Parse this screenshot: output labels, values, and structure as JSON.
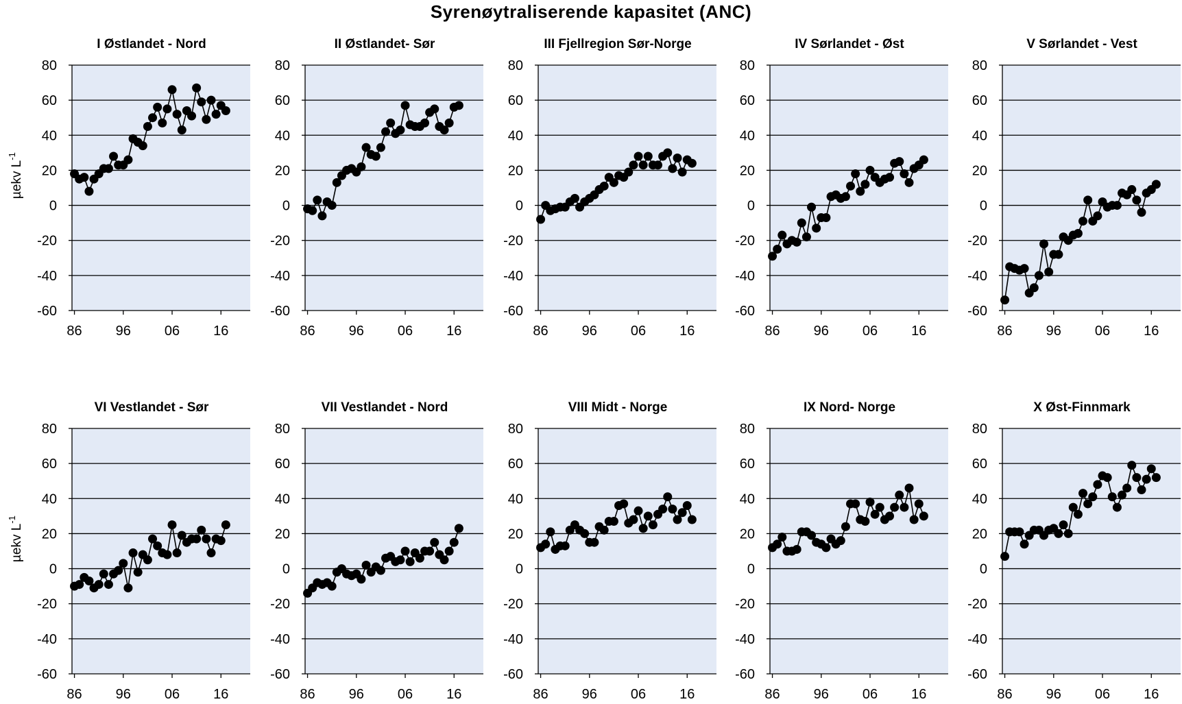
{
  "title": "Syrenøytraliserende kapasitet (ANC)",
  "colors": {
    "plot_bg": "#e3eaf6",
    "grid": "#000000",
    "marker": "#000000",
    "line": "#000000"
  },
  "shared": {
    "ylabel": "µekv L",
    "ylabel_sup": "-1",
    "xticks": [
      1986,
      1996,
      2006,
      2016
    ],
    "xtick_labels": [
      "86",
      "96",
      "06",
      "16"
    ],
    "yticks": [
      -60,
      -40,
      -20,
      0,
      20,
      40,
      60,
      80
    ],
    "xlim": [
      1985.5,
      2022
    ],
    "ylim": [
      -60,
      80
    ]
  },
  "chart_data": [
    {
      "type": "line",
      "title": "I Østlandet - Nord",
      "xlabel": "",
      "ylabel": "µekv L-1",
      "x": [
        1986,
        1987,
        1988,
        1989,
        1990,
        1991,
        1992,
        1993,
        1994,
        1995,
        1996,
        1997,
        1998,
        1999,
        2000,
        2001,
        2002,
        2003,
        2004,
        2005,
        2006,
        2007,
        2008,
        2009,
        2010,
        2011,
        2012,
        2013,
        2014,
        2015,
        2016,
        2017
      ],
      "y": [
        18,
        15,
        16,
        8,
        15,
        18,
        21,
        21,
        28,
        23,
        23,
        26,
        38,
        36,
        34,
        45,
        50,
        56,
        47,
        55,
        66,
        52,
        43,
        54,
        51,
        67,
        59,
        49,
        60,
        52,
        57,
        54
      ]
    },
    {
      "type": "line",
      "title": "II Østlandet- Sør",
      "xlabel": "",
      "ylabel": "",
      "x": [
        1986,
        1987,
        1988,
        1989,
        1990,
        1991,
        1992,
        1993,
        1994,
        1995,
        1996,
        1997,
        1998,
        1999,
        2000,
        2001,
        2002,
        2003,
        2004,
        2005,
        2006,
        2007,
        2008,
        2009,
        2010,
        2011,
        2012,
        2013,
        2014,
        2015,
        2016,
        2017
      ],
      "y": [
        -2,
        -3,
        3,
        -6,
        2,
        0,
        13,
        17,
        20,
        21,
        19,
        22,
        33,
        29,
        28,
        33,
        42,
        47,
        41,
        43,
        57,
        46,
        45,
        45,
        47,
        53,
        55,
        45,
        43,
        47,
        56,
        57
      ]
    },
    {
      "type": "line",
      "title": "III Fjellregion Sør-Norge",
      "xlabel": "",
      "ylabel": "",
      "x": [
        1986,
        1987,
        1988,
        1989,
        1990,
        1991,
        1992,
        1993,
        1994,
        1995,
        1996,
        1997,
        1998,
        1999,
        2000,
        2001,
        2002,
        2003,
        2004,
        2005,
        2006,
        2007,
        2008,
        2009,
        2010,
        2011,
        2012,
        2013,
        2014,
        2015,
        2016,
        2017
      ],
      "y": [
        -8,
        0,
        -3,
        -2,
        -1,
        -1,
        2,
        4,
        -1,
        2,
        4,
        6,
        9,
        11,
        16,
        13,
        17,
        16,
        19,
        23,
        28,
        23,
        28,
        23,
        23,
        28,
        30,
        21,
        27,
        19,
        26,
        24
      ]
    },
    {
      "type": "line",
      "title": "IV Sørlandet - Øst",
      "xlabel": "",
      "ylabel": "",
      "x": [
        1986,
        1987,
        1988,
        1989,
        1990,
        1991,
        1992,
        1993,
        1994,
        1995,
        1996,
        1997,
        1998,
        1999,
        2000,
        2001,
        2002,
        2003,
        2004,
        2005,
        2006,
        2007,
        2008,
        2009,
        2010,
        2011,
        2012,
        2013,
        2014,
        2015,
        2016,
        2017
      ],
      "y": [
        -29,
        -25,
        -17,
        -22,
        -20,
        -21,
        -10,
        -18,
        -1,
        -13,
        -7,
        -7,
        5,
        6,
        4,
        5,
        11,
        18,
        8,
        12,
        20,
        16,
        13,
        15,
        16,
        24,
        25,
        18,
        13,
        21,
        23,
        26
      ]
    },
    {
      "type": "line",
      "title": "V Sørlandet - Vest",
      "xlabel": "",
      "ylabel": "",
      "x": [
        1986,
        1987,
        1988,
        1989,
        1990,
        1991,
        1992,
        1993,
        1994,
        1995,
        1996,
        1997,
        1998,
        1999,
        2000,
        2001,
        2002,
        2003,
        2004,
        2005,
        2006,
        2007,
        2008,
        2009,
        2010,
        2011,
        2012,
        2013,
        2014,
        2015,
        2016,
        2017
      ],
      "y": [
        -54,
        -35,
        -36,
        -37,
        -36,
        -50,
        -47,
        -40,
        -22,
        -38,
        -28,
        -28,
        -18,
        -20,
        -17,
        -16,
        -9,
        3,
        -9,
        -6,
        2,
        -1,
        0,
        0,
        7,
        6,
        9,
        3,
        -4,
        7,
        9,
        12
      ]
    },
    {
      "type": "line",
      "title": "VI Vestlandet - Sør",
      "xlabel": "",
      "ylabel": "µekv L-1",
      "x": [
        1986,
        1987,
        1988,
        1989,
        1990,
        1991,
        1992,
        1993,
        1994,
        1995,
        1996,
        1997,
        1998,
        1999,
        2000,
        2001,
        2002,
        2003,
        2004,
        2005,
        2006,
        2007,
        2008,
        2009,
        2010,
        2011,
        2012,
        2013,
        2014,
        2015,
        2016,
        2017
      ],
      "y": [
        -10,
        -9,
        -5,
        -7,
        -11,
        -9,
        -3,
        -9,
        -3,
        -1,
        3,
        -11,
        9,
        -2,
        8,
        5,
        17,
        13,
        9,
        8,
        25,
        9,
        19,
        15,
        17,
        17,
        22,
        17,
        9,
        17,
        16,
        25
      ]
    },
    {
      "type": "line",
      "title": "VII Vestlandet - Nord",
      "xlabel": "",
      "ylabel": "",
      "x": [
        1986,
        1987,
        1988,
        1989,
        1990,
        1991,
        1992,
        1993,
        1994,
        1995,
        1996,
        1997,
        1998,
        1999,
        2000,
        2001,
        2002,
        2003,
        2004,
        2005,
        2006,
        2007,
        2008,
        2009,
        2010,
        2011,
        2012,
        2013,
        2014,
        2015,
        2016,
        2017
      ],
      "y": [
        -14,
        -11,
        -8,
        -9,
        -8,
        -10,
        -2,
        0,
        -3,
        -4,
        -3,
        -6,
        2,
        -2,
        1,
        -1,
        6,
        7,
        4,
        5,
        10,
        4,
        9,
        6,
        10,
        10,
        15,
        8,
        5,
        10,
        15,
        23
      ]
    },
    {
      "type": "line",
      "title": "VIII Midt - Norge",
      "xlabel": "",
      "ylabel": "",
      "x": [
        1986,
        1987,
        1988,
        1989,
        1990,
        1991,
        1992,
        1993,
        1994,
        1995,
        1996,
        1997,
        1998,
        1999,
        2000,
        2001,
        2002,
        2003,
        2004,
        2005,
        2006,
        2007,
        2008,
        2009,
        2010,
        2011,
        2012,
        2013,
        2014,
        2015,
        2016,
        2017
      ],
      "y": [
        12,
        14,
        21,
        11,
        13,
        13,
        22,
        25,
        22,
        20,
        15,
        15,
        24,
        22,
        27,
        27,
        36,
        37,
        26,
        28,
        33,
        23,
        30,
        25,
        31,
        34,
        41,
        34,
        28,
        32,
        36,
        28
      ]
    },
    {
      "type": "line",
      "title": "IX Nord- Norge",
      "xlabel": "",
      "ylabel": "",
      "x": [
        1986,
        1987,
        1988,
        1989,
        1990,
        1991,
        1992,
        1993,
        1994,
        1995,
        1996,
        1997,
        1998,
        1999,
        2000,
        2001,
        2002,
        2003,
        2004,
        2005,
        2006,
        2007,
        2008,
        2009,
        2010,
        2011,
        2012,
        2013,
        2014,
        2015,
        2016,
        2017
      ],
      "y": [
        12,
        14,
        18,
        10,
        10,
        11,
        21,
        21,
        19,
        15,
        14,
        12,
        17,
        14,
        16,
        24,
        37,
        37,
        28,
        27,
        38,
        31,
        35,
        28,
        30,
        35,
        42,
        35,
        46,
        28,
        37,
        30
      ]
    },
    {
      "type": "line",
      "title": "X Øst-Finnmark",
      "xlabel": "",
      "ylabel": "",
      "x": [
        1986,
        1987,
        1988,
        1989,
        1990,
        1991,
        1992,
        1993,
        1994,
        1995,
        1996,
        1997,
        1998,
        1999,
        2000,
        2001,
        2002,
        2003,
        2004,
        2005,
        2006,
        2007,
        2008,
        2009,
        2010,
        2011,
        2012,
        2013,
        2014,
        2015,
        2016,
        2017
      ],
      "y": [
        7,
        21,
        21,
        21,
        14,
        19,
        22,
        22,
        19,
        22,
        23,
        20,
        25,
        20,
        35,
        31,
        43,
        37,
        41,
        48,
        53,
        52,
        41,
        35,
        42,
        46,
        59,
        52,
        45,
        51,
        57,
        52
      ]
    }
  ]
}
